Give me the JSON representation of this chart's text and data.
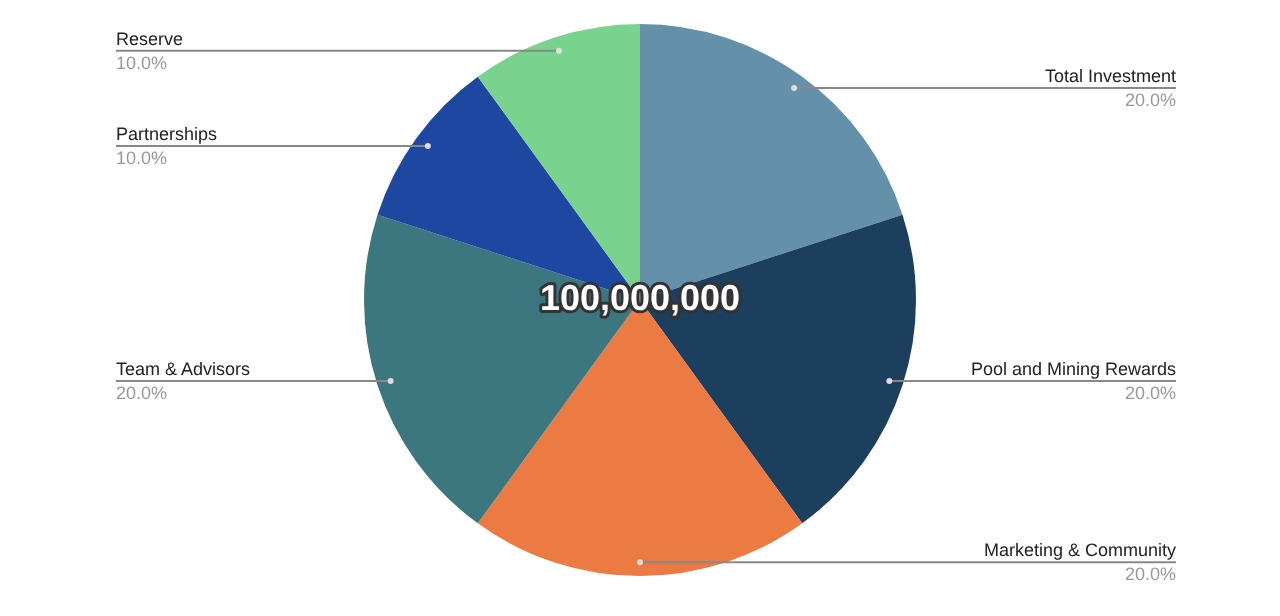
{
  "chart_data": {
    "type": "pie",
    "categories": [
      "Total Investment",
      "Pool and Mining Rewards",
      "Marketing & Community",
      "Team & Advisors",
      "Partnerships",
      "Reserve"
    ],
    "values": [
      20,
      20,
      20,
      20,
      10,
      10
    ],
    "colors": [
      "#6590aa",
      "#1b3f5d",
      "#ec7a43",
      "#3c767e",
      "#1d47a1",
      "#79d38f"
    ],
    "value_labels": [
      "20.0%",
      "20.0%",
      "20.0%",
      "20.0%",
      "10.0%",
      "10.0%"
    ],
    "annotations": [
      "100,000,000"
    ],
    "legend": false
  }
}
